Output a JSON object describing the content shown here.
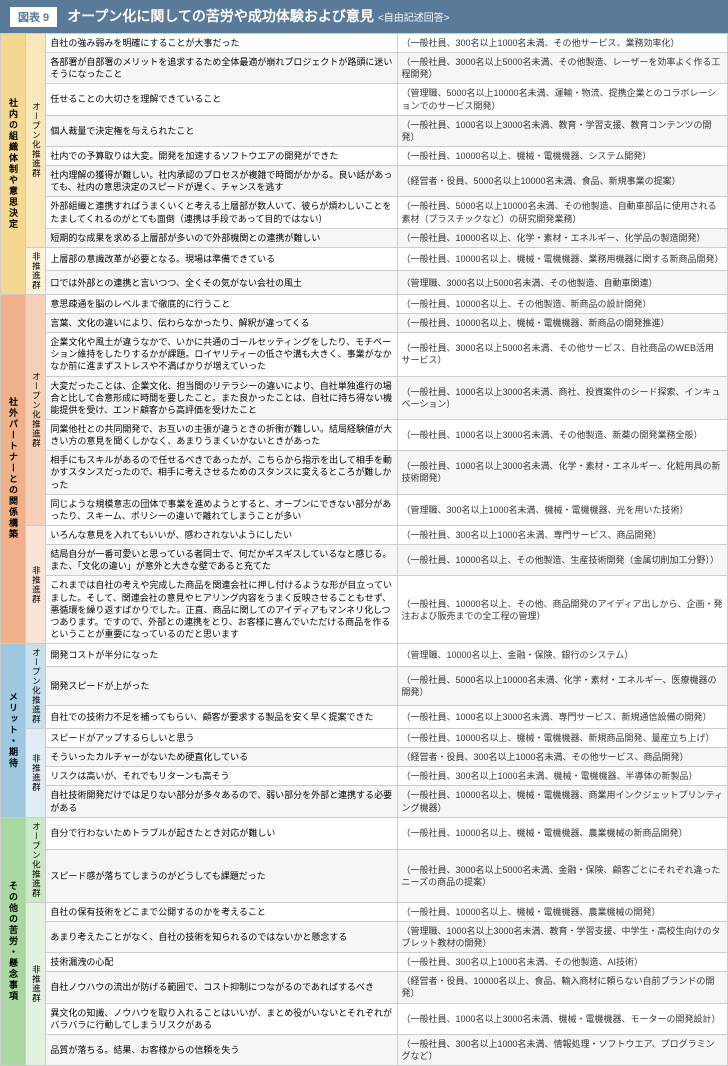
{
  "header": {
    "badge": "図表 9",
    "title": "オープン化に関しての苦労や成功体験および意見",
    "subtitle": "<自由記述回答>"
  },
  "sections": [
    {
      "id": "org",
      "label": "社内の組織体制や意思決定",
      "catClass": "c-org",
      "groups": [
        {
          "label": "オープン化推進群",
          "subClass": "c-org-s1",
          "rows": [
            {
              "c": "自社の強み弱みを明確にすることが大事だった",
              "r": "（一般社員、300名以上1000名未満、その他サービス、業務効率化）"
            },
            {
              "c": "各部署が自部署のメリットを追求するため全体最適が崩れプロジェクトが路頭に迷いそうになったこと",
              "r": "（一般社員、3000名以上5000名未満、その他製造、レーザーを効率よく作る工程開発）"
            },
            {
              "c": "任せることの大切さを理解できていること",
              "r": "（管理職、5000名以上10000名未満、運輸・物流、提携企業とのコラボレーションでのサービス開発）"
            },
            {
              "c": "個人裁量で決定権を与えられたこと",
              "r": "（一般社員、1000名以上3000名未満、教育・学習支援、教育コンテンツの開発）"
            },
            {
              "c": "社内での予算取りは大変。開発を加速するソフトウエアの開発ができた",
              "r": "（一般社員、10000名以上、機械・電機機器、システム開発）"
            },
            {
              "c": "社内理解の獲得が難しい。社内承認のプロセスが複雑で時間がかかる。良い話があっても、社内の意思決定のスピードが遅く、チャンスを逃す",
              "r": "（経営者・役員、5000名以上10000名未満、食品、新規事業の提案）"
            },
            {
              "c": "外部組織と連携すればうまくいくと考える上層部が数人いて、彼らが煩わしいことをたましてくれるのがとても面倒（連携は手段であって目的ではない）",
              "r": "（一般社員、5000名以上10000名未満、その他製造、自動車部品に使用される素材（プラスチックなど）の研究開発業務）"
            },
            {
              "c": "短期的な成果を求める上層部が多いので外部機関との連携が難しい",
              "r": "（一般社員、10000名以上、化学・素材・エネルギー、化学品の製造開発）"
            }
          ]
        },
        {
          "label": "非推進群",
          "subClass": "c-org-s2",
          "rows": [
            {
              "c": "上層部の意識改革が必要となる。現場は準備できている",
              "r": "（一般社員、10000名以上、機械・電機機器、業務用機器に関する新商品開発）"
            },
            {
              "c": "口では外部との連携と言いつつ、全くその気がない会社の風土",
              "r": "（管理職、3000名以上5000名未満、その他製造、自動車関連）"
            }
          ]
        }
      ]
    },
    {
      "id": "partner",
      "label": "社外パートナーとの関係構築",
      "catClass": "c-part",
      "groups": [
        {
          "label": "オープン化推進群",
          "subClass": "c-part-s1",
          "rows": [
            {
              "c": "意思疎通を脳のレベルまで徹底的に行うこと",
              "r": "（一般社員、10000名以上、その他製造、新商品の設計開発）"
            },
            {
              "c": "言葉、文化の違いにより、伝わらなかったり、解釈が違ってくる",
              "r": "（一般社員、10000名以上、機械・電機機器、新商品の開発推進）"
            },
            {
              "c": "企業文化や風土が違うなかで、いかに共通のゴールセッティングをしたり、モチベーション維持をしたりするかが課題。ロイヤリティーの低さや溝も大きく、事業がなかなか前に進まずストレスや不満ばかりが増えていった",
              "r": "（一般社員、3000名以上5000名未満、その他サービス、自社商品のWEB活用サービス）"
            },
            {
              "c": "大変だったことは、企業文化、担当間のリテラシーの違いにより、自社単独進行の場合と比して合意形成に時間を要したこと。また良かったことは、自社に持ち得ない機能提供を受け、エンド顧客から高評価を受けたこと",
              "r": "（一般社員、1000名以上3000名未満、商社、投資案件のシード探索、インキュベーション）"
            },
            {
              "c": "同業他社との共同開発で、お互いの主張が違うときの折衝が難しい。結局経験値が大きい方の意見を聞くしかなく、あまりうまくいかないときがあった",
              "r": "（一般社員、1000名以上3000名未満、その他製造、新薬の開発業務全般）"
            },
            {
              "c": "相手にもスキルがあるので任せるべきであったが、こちらから指示を出して相手を動かすスタンスだったので、相手に考えさせるためのスタンスに変えるところが難しかった",
              "r": "（一般社員、1000名以上3000名未満、化学・素材・エネルギー、化粧用具の新技術開発）"
            },
            {
              "c": "同じような規模意志の団体で事業を進めようとすると、オープンにできない部分があったり、スキーム、ポリシーの違いで離れてしまうことが多い",
              "r": "（管理職、300名以上1000名未満、機械・電機機器、光を用いた技術）"
            }
          ]
        },
        {
          "label": "非推進群",
          "subClass": "c-part-s2",
          "rows": [
            {
              "c": "いろんな意見を入れてもいいが、感わされないようにしたい",
              "r": "（一般社員、300名以上1000名未満、専門サービス、商品開発）"
            },
            {
              "c": "結局自分が一番可愛いと思っている者同士で、何だかギスギスしているなと感じる。また、「文化の違い」が意外と大きな壁であると充てた",
              "r": "（一般社員、10000名以上、その他製造、生産技術開発（金属切削加工分野））"
            },
            {
              "c": "これまでは自社の考えや完成した商品を関連会社に押し付けるような形が目立っていました。そして、関連会社の意見やヒアリング内容をうまく反映させることもせず、悪循環を繰り返すばかりでした。正直、商品に関してのアイディアもマンネリ化しつつあります。ですので、外部との連携をとり、お客様に喜んでいただける商品を作るということが重要になっているのだと思います",
              "r": "（一般社員、10000名以上、その他、商品開発のアイディア出しから、企画・発注および販売までの全工程の管理）"
            }
          ]
        }
      ]
    },
    {
      "id": "merit",
      "label": "メリット・期待",
      "catClass": "c-merit",
      "groups": [
        {
          "label": "オープン化推進群",
          "subClass": "c-merit-s1",
          "rows": [
            {
              "c": "開発コストが半分になった",
              "r": "（管理職、10000名以上、金融・保険、銀行のシステム）"
            },
            {
              "c": "開発スピードが上がった",
              "r": "（一般社員、5000名以上10000名未満、化学・素材・エネルギー、医療機器の開発）"
            },
            {
              "c": "自社での技術力不足を補ってもらい、顧客が要求する製品を安く早く提案できた",
              "r": "（一般社員、1000名以上3000名未満、専門サービス、新規通信設備の開発）"
            }
          ]
        },
        {
          "label": "非推進群",
          "subClass": "c-merit-s2",
          "rows": [
            {
              "c": "スピードがアップするらしいと思う",
              "r": "（一般社員、10000名以上、機械・電機機器、新規商品開発、量産立ち上げ）"
            },
            {
              "c": "そういったカルチャーがないため硬直化している",
              "r": "（経営者・役員、300名以上1000名未満、その他サービス、商品開発）"
            },
            {
              "c": "リスクは高いが、それでもリターンも高そう",
              "r": "（一般社員、300名以上1000名未満、機械・電機機器、半導体の新製品）"
            },
            {
              "c": "自社技術開発だけでは足りない部分が多々あるので、弱い部分を外部と連携する必要がある",
              "r": "（一般社員、10000名以上、機械・電機機器、商業用インクジェットプリンティング機器）"
            }
          ]
        }
      ]
    },
    {
      "id": "other",
      "label": "その他の苦労・懸念事項",
      "catClass": "c-other",
      "groups": [
        {
          "label": "オープン化推進群",
          "subClass": "c-other-s1",
          "rows": [
            {
              "c": "自分で行わないためトラブルが起きたとき対応が難しい",
              "r": "（一般社員、10000名以上、機械・電機機器、農業機械の新商品開発）"
            },
            {
              "c": "スピード感が落ちてしまうのがどうしても課題だった",
              "r": "（一般社員、3000名以上5000名未満、金融・保険、顧客ごとにそれぞれ違ったニーズの商品の提案）"
            }
          ]
        },
        {
          "label": "非推進群",
          "subClass": "c-other-s2",
          "rows": [
            {
              "c": "自社の保有技術をどこまで公開するのかを考えること",
              "r": "（一般社員、10000名以上、機械・電機機器、農業機械の開発）"
            },
            {
              "c": "あまり考えたことがなく、自社の技術を知られるのではないかと懸念する",
              "r": "（管理職、1000名以上3000名未満、教育・学習支援、中学生・高校生向けのタブレット教材の開発）"
            },
            {
              "c": "技術漏洩の心配",
              "r": "（一般社員、300名以上1000名未満、その他製造、AI技術）"
            },
            {
              "c": "自社ノウハウの流出が防げる範囲で、コスト抑制につながるのであればするべき",
              "r": "（経営者・役員、10000名以上、食品、輸入商材に頼らない自前ブランドの開発）"
            },
            {
              "c": "異文化の知識、ノウハウを取り入れることはいいが、まとめ役がいないとそれぞれがバラバラに行動してしまうリスクがある",
              "r": "（一般社員、1000名以上3000名未満、機械・電機機器、モーターの開発設計）"
            },
            {
              "c": "品質が落ちる。結果、お客様からの信頼を失う",
              "r": "（一般社員、300名以上1000名未満、情報処理・ソフトウエア、プログラミングなど）"
            }
          ]
        }
      ]
    }
  ]
}
